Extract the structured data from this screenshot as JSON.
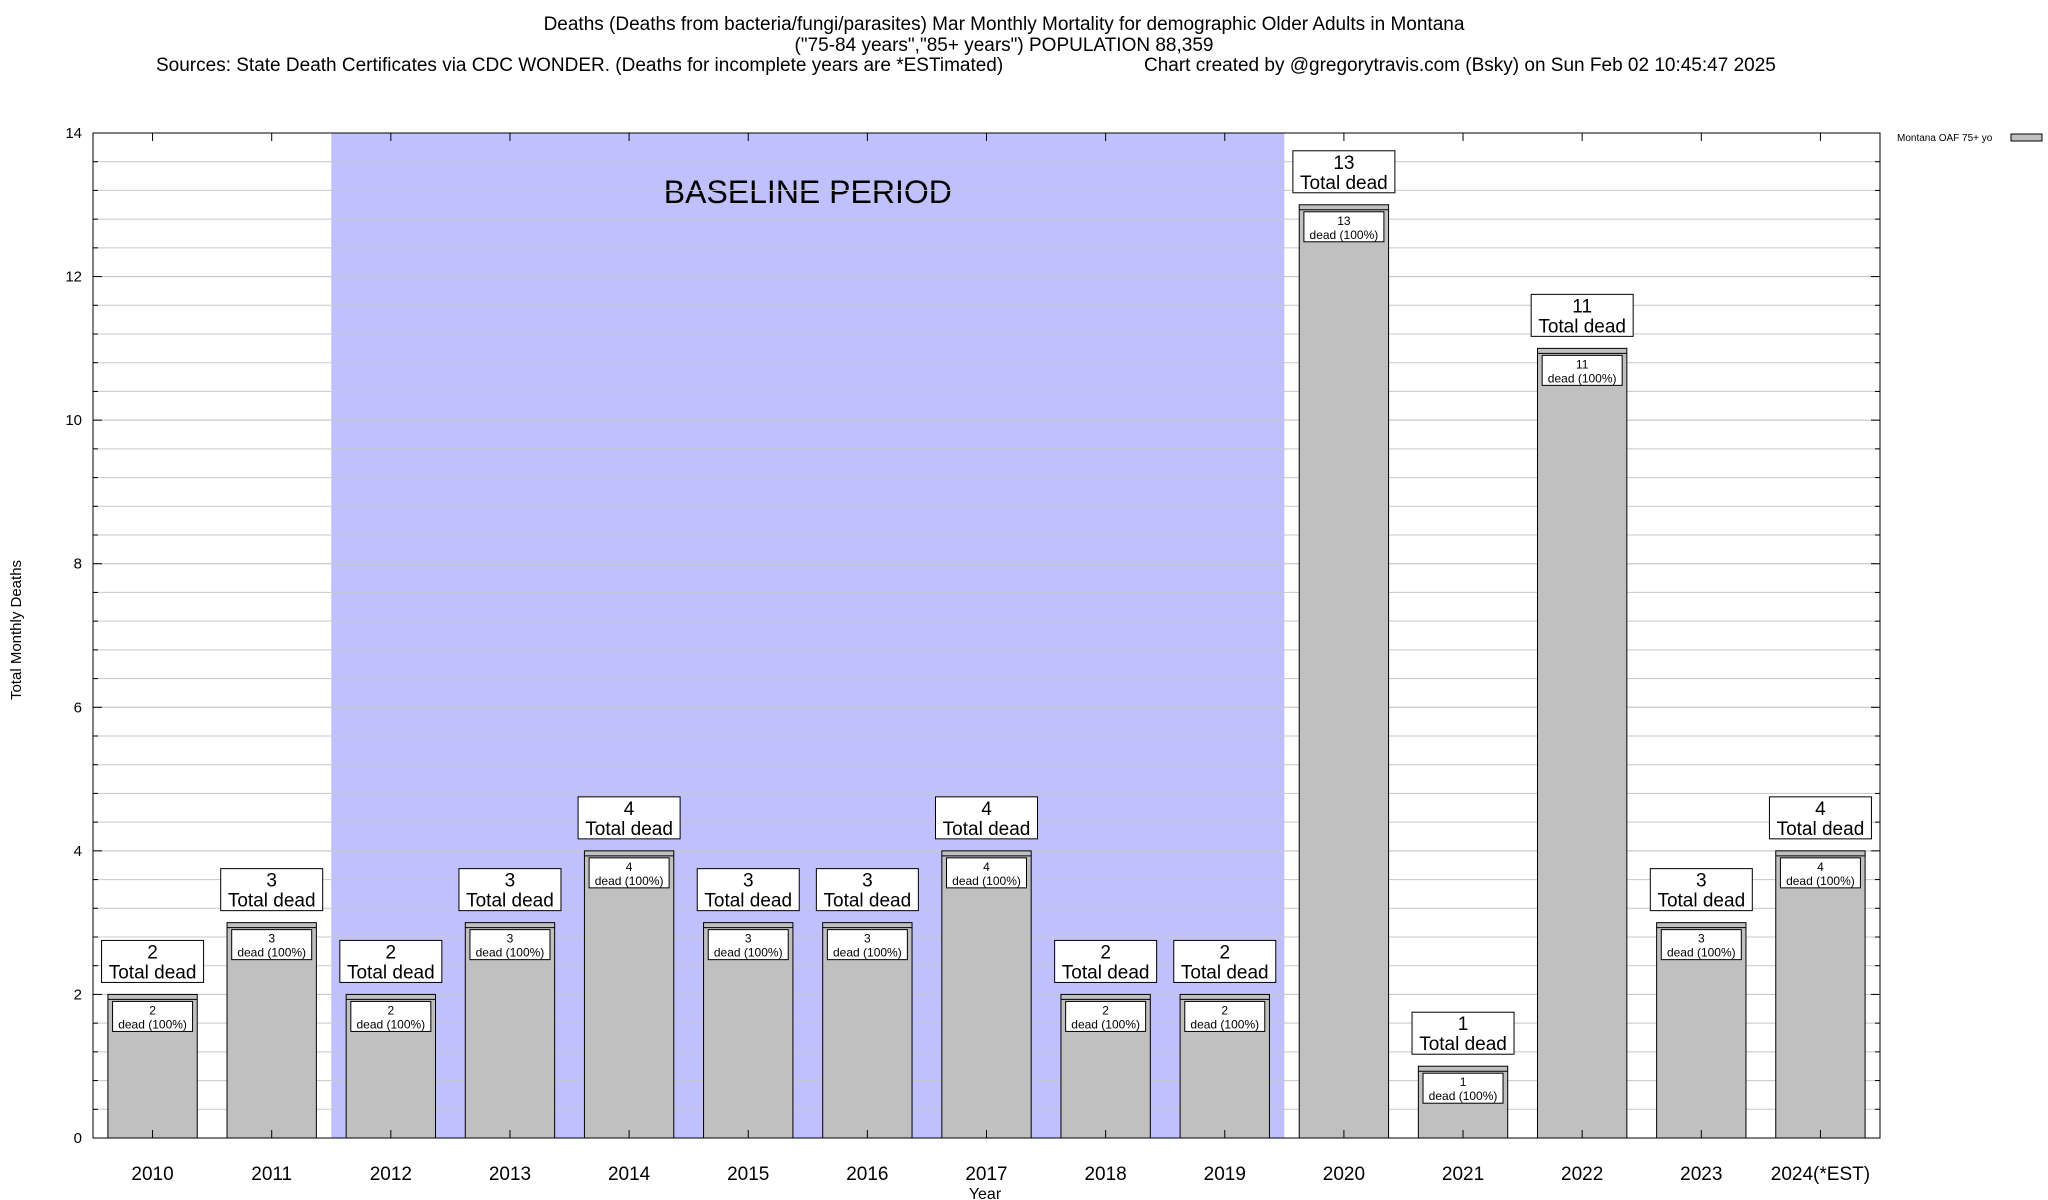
{
  "chart_data": {
    "type": "bar",
    "title": "Deaths (Deaths from bacteria/fungi/parasites) Mar Monthly Mortality for demographic Older Adults in Montana",
    "subtitle": "(\"75-84 years\",\"85+ years\") POPULATION 88,359",
    "sources": "Sources: State Death Certificates via CDC WONDER. (Deaths for incomplete years are *ESTimated)",
    "credit": "Chart created by @gregorytravis.com (Bsky) on Sun Feb 02 10:45:47 2025",
    "xlabel": "Year",
    "ylabel": "Total Monthly Deaths",
    "ylim": [
      0,
      14
    ],
    "y_ticks": [
      0,
      2,
      4,
      6,
      8,
      10,
      12,
      14
    ],
    "grid": true,
    "legend": {
      "position": "top-right",
      "entries": [
        "Montana OAF 75+ yo"
      ]
    },
    "categories": [
      "2010",
      "2011",
      "2012",
      "2013",
      "2014",
      "2015",
      "2016",
      "2017",
      "2018",
      "2019",
      "2020",
      "2021",
      "2022",
      "2023",
      "2024(*EST)"
    ],
    "series": [
      {
        "name": "Montana OAF 75+ yo",
        "values": [
          2,
          3,
          2,
          3,
          4,
          3,
          3,
          4,
          2,
          2,
          13,
          1,
          11,
          3,
          4
        ]
      }
    ],
    "total_label_text": "Total dead",
    "inner_label_text": "dead (100%)",
    "baseline": {
      "label": "BASELINE PERIOD",
      "start": "2012",
      "end": "2019"
    },
    "colors": {
      "bar": "#c0c0c0",
      "baseline": "#c0c0ff",
      "grid": "#c8c8c8"
    }
  }
}
